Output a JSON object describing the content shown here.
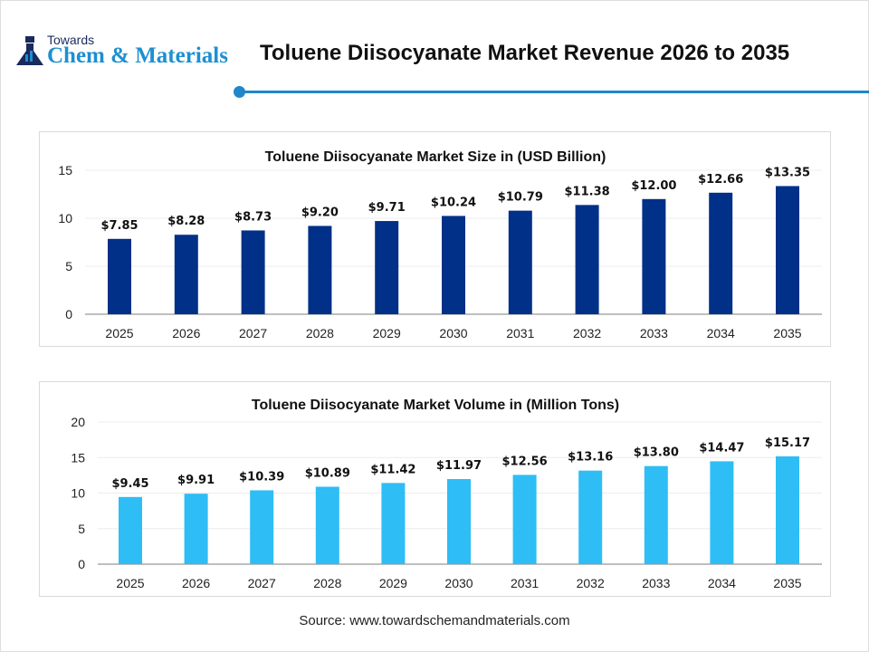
{
  "logo": {
    "towards": "Towards",
    "main": "Chem & Materials"
  },
  "header": {
    "title": "Toluene Diisocyanate Market Revenue 2026 to 2035"
  },
  "source": "Source: www.towardschemandmaterials.com",
  "colors": {
    "accent": "#1e88c8",
    "series1": "#003087",
    "series2": "#2ebdf5"
  },
  "chart_data": [
    {
      "type": "bar",
      "title": "Toluene Diisocyanate Market Size in (USD Billion)",
      "categories": [
        "2025",
        "2026",
        "2027",
        "2028",
        "2029",
        "2030",
        "2031",
        "2032",
        "2033",
        "2034",
        "2035"
      ],
      "values": [
        7.85,
        8.28,
        8.73,
        9.2,
        9.71,
        10.24,
        10.79,
        11.38,
        12.0,
        12.66,
        13.35
      ],
      "data_labels": [
        "$7.85",
        "$8.28",
        "$8.73",
        "$9.20",
        "$9.71",
        "$10.24",
        "$10.79",
        "$11.38",
        "$12.00",
        "$12.66",
        "$13.35"
      ],
      "yticks": [
        "0",
        "5",
        "10",
        "15"
      ],
      "ylim": [
        0,
        15
      ],
      "grid": true,
      "color": "#003087"
    },
    {
      "type": "bar",
      "title": "Toluene Diisocyanate Market Volume in (Million Tons)",
      "categories": [
        "2025",
        "2026",
        "2027",
        "2028",
        "2029",
        "2030",
        "2031",
        "2032",
        "2033",
        "2034",
        "2035"
      ],
      "values": [
        9.45,
        9.91,
        10.39,
        10.89,
        11.42,
        11.97,
        12.56,
        13.16,
        13.8,
        14.47,
        15.17
      ],
      "data_labels": [
        "$9.45",
        "$9.91",
        "$10.39",
        "$10.89",
        "$11.42",
        "$11.97",
        "$12.56",
        "$13.16",
        "$13.80",
        "$14.47",
        "$15.17"
      ],
      "yticks": [
        "0",
        "5",
        "10",
        "15",
        "20"
      ],
      "ylim": [
        0,
        20
      ],
      "grid": true,
      "color": "#2ebdf5"
    }
  ]
}
